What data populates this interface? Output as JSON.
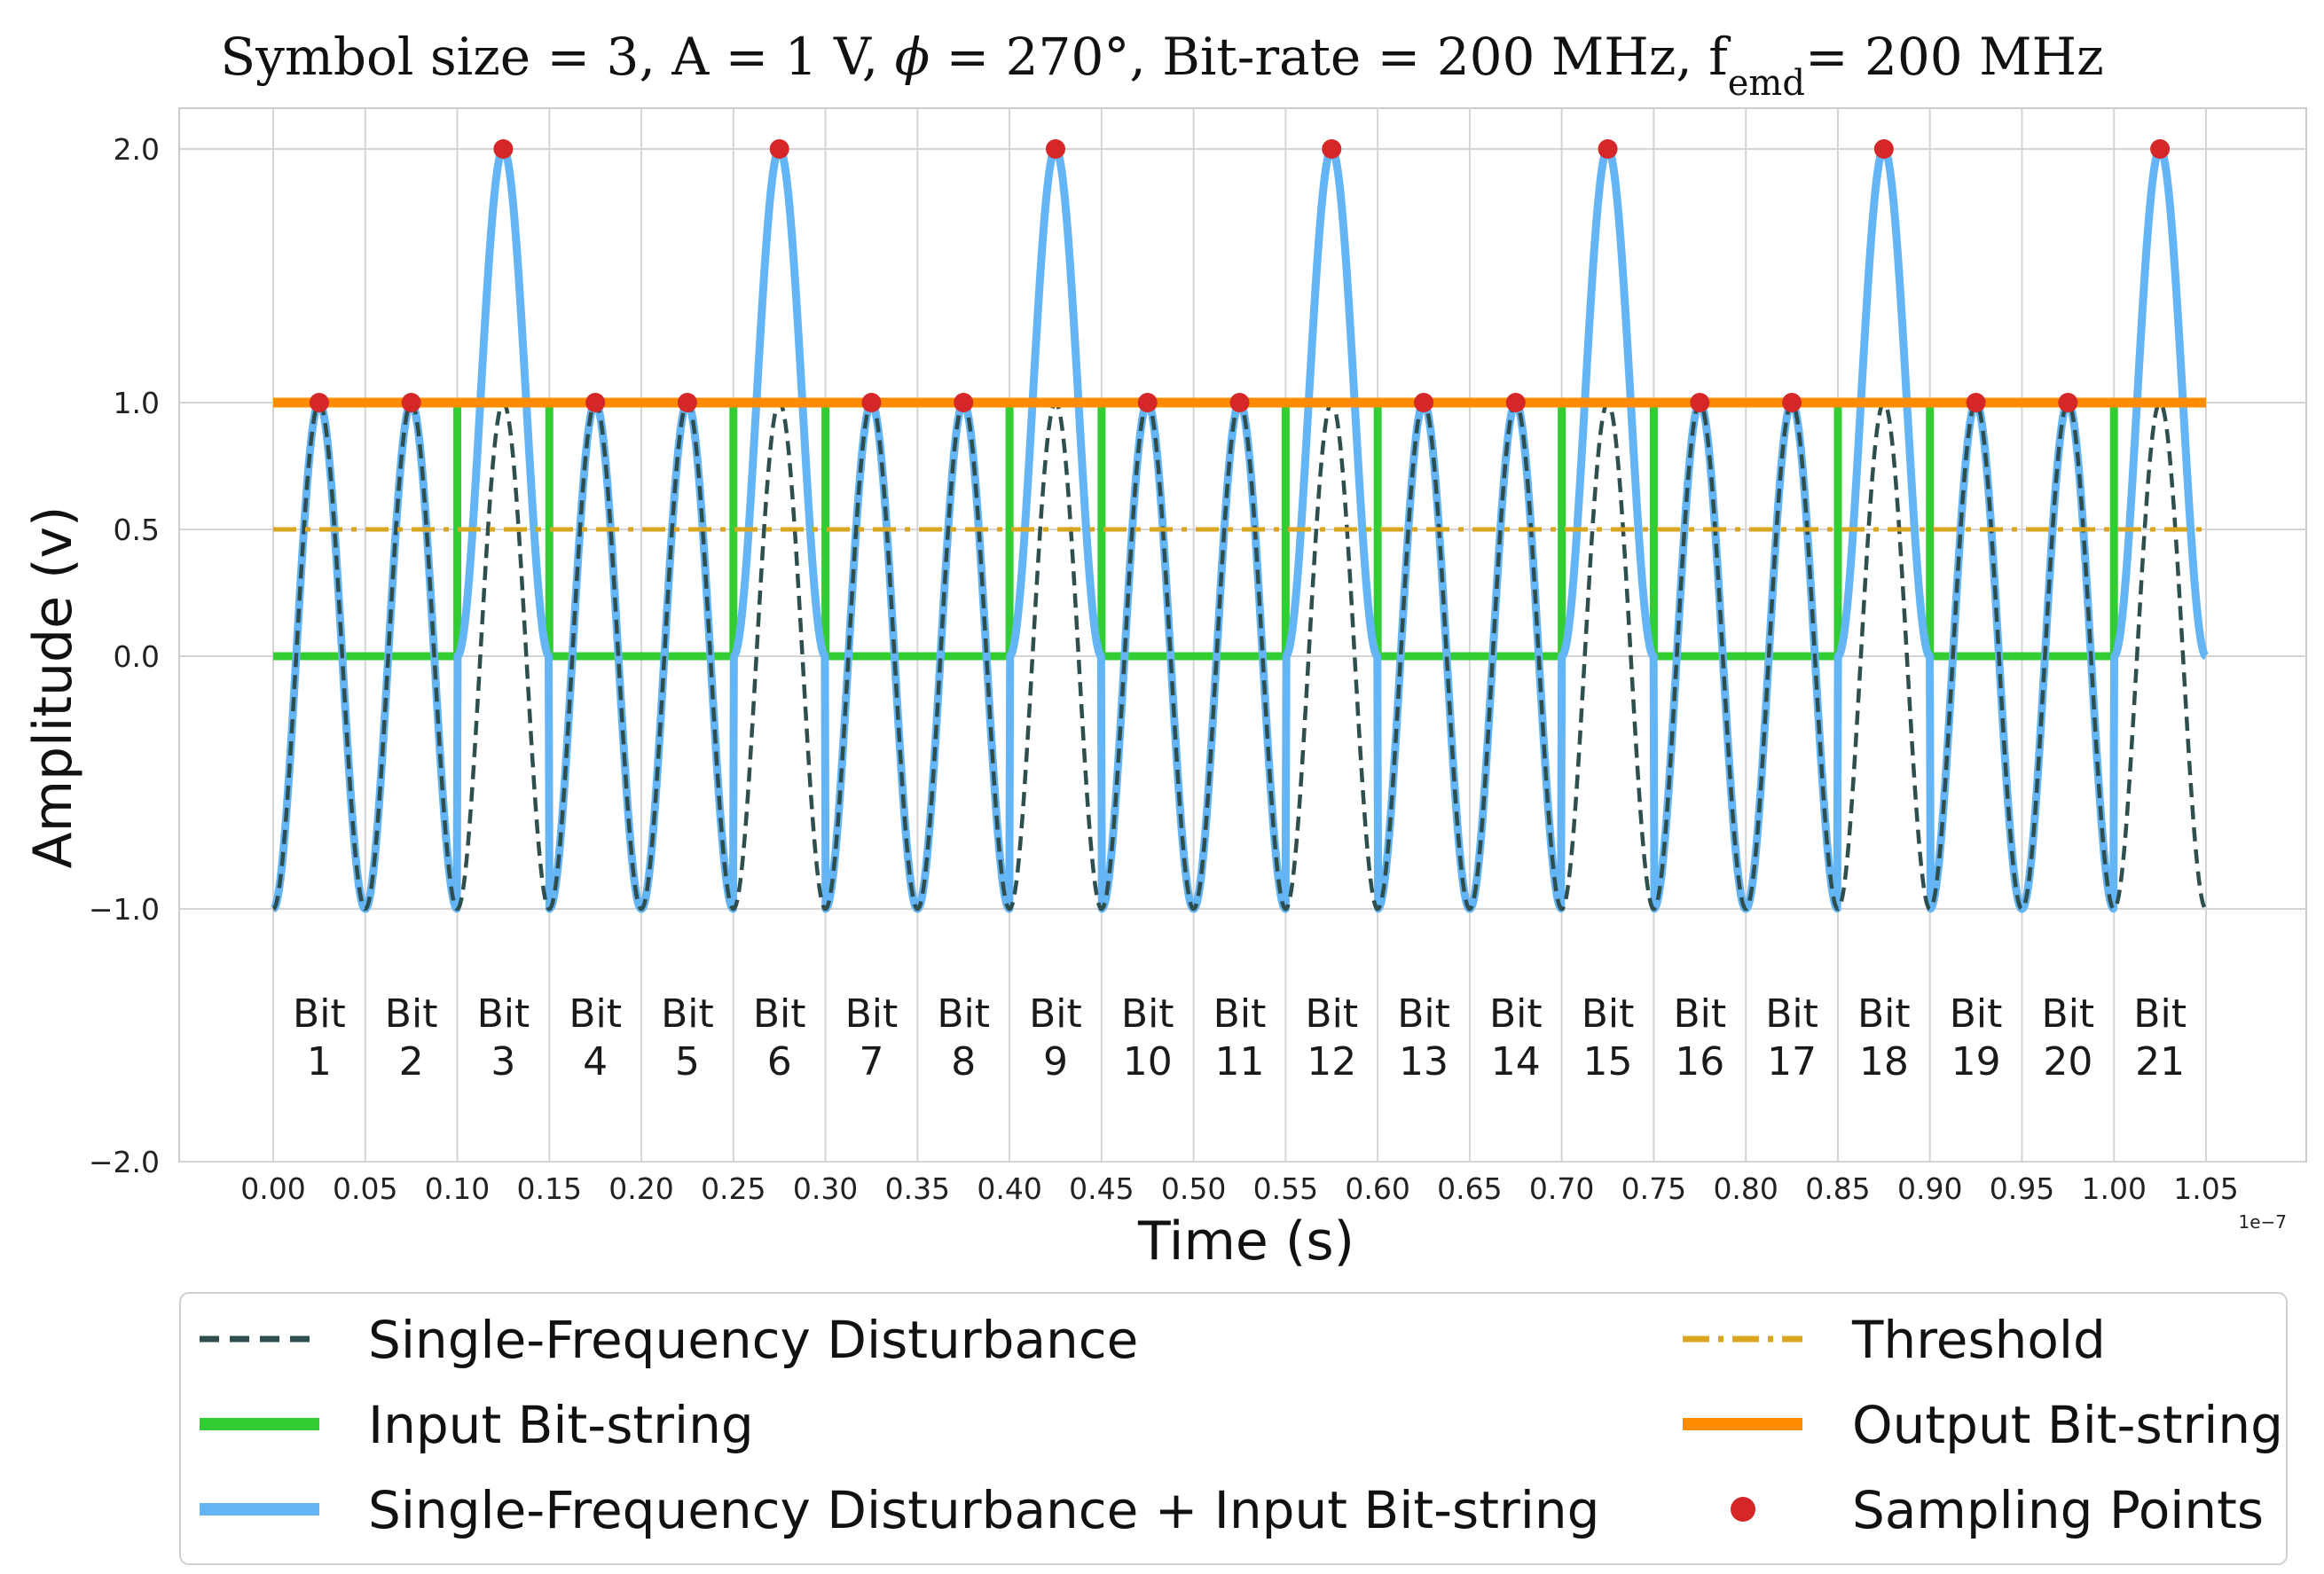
{
  "chart_data": {
    "type": "line",
    "title_parts": {
      "prefix": "Symbol size = 3, A = 1 V, ",
      "phi": "ϕ",
      "middle": " = 270°, Bit-rate = 200 MHz, f",
      "subscript": "emd",
      "suffix": "= 200 MHz"
    },
    "xlabel": "Time (s)",
    "ylabel": "Amplitude (v)",
    "x_offset_text": "1e−7",
    "xlim": [
      -0.0,
      1.05
    ],
    "ylim": [
      -2.0,
      2.0
    ],
    "x_ticks": [
      0.0,
      0.05,
      0.1,
      0.15,
      0.2,
      0.25,
      0.3,
      0.35,
      0.4,
      0.45,
      0.5,
      0.55,
      0.6,
      0.65,
      0.7,
      0.75,
      0.8,
      0.85,
      0.9,
      0.95,
      1.0,
      1.05
    ],
    "x_tick_labels": [
      "0.00",
      "0.05",
      "0.10",
      "0.15",
      "0.20",
      "0.25",
      "0.30",
      "0.35",
      "0.40",
      "0.45",
      "0.50",
      "0.55",
      "0.60",
      "0.65",
      "0.70",
      "0.75",
      "0.80",
      "0.85",
      "0.90",
      "0.95",
      "1.00",
      "1.05"
    ],
    "y_ticks": [
      -2.0,
      -1.0,
      0.0,
      0.5,
      1.0,
      2.0
    ],
    "y_tick_labels": [
      "−2.0",
      "−1.0",
      "0.0",
      "0.5",
      "1.0",
      "2.0"
    ],
    "disturbance": {
      "amplitude": 1,
      "frequency_per_unit": 20,
      "phase_deg": 270
    },
    "bit_duration": 0.05,
    "input_bits": [
      0,
      0,
      1,
      0,
      0,
      1,
      0,
      0,
      1,
      0,
      0,
      1,
      0,
      0,
      1,
      0,
      0,
      1,
      0,
      0,
      1
    ],
    "output_bits": [
      1,
      1,
      1,
      1,
      1,
      1,
      1,
      1,
      1,
      1,
      1,
      1,
      1,
      1,
      1,
      1,
      1,
      1,
      1,
      1,
      1
    ],
    "threshold": 0.5,
    "sampling_points": {
      "x": [
        0.025,
        0.075,
        0.125,
        0.175,
        0.225,
        0.275,
        0.325,
        0.375,
        0.425,
        0.475,
        0.525,
        0.575,
        0.625,
        0.675,
        0.725,
        0.775,
        0.825,
        0.875,
        0.925,
        0.975,
        1.025
      ],
      "y": [
        1,
        1,
        2,
        1,
        1,
        2,
        1,
        1,
        2,
        1,
        1,
        2,
        1,
        1,
        2,
        1,
        1,
        2,
        1,
        1,
        2
      ]
    },
    "bit_labels": {
      "word": "Bit",
      "numbers": [
        "1",
        "2",
        "3",
        "4",
        "5",
        "6",
        "7",
        "8",
        "9",
        "10",
        "11",
        "12",
        "13",
        "14",
        "15",
        "16",
        "17",
        "18",
        "19",
        "20",
        "21"
      ]
    },
    "series": [
      {
        "name": "Single-Frequency Disturbance",
        "color": "#2f4f4f",
        "style": "dashed"
      },
      {
        "name": "Input Bit-string",
        "color": "#32cd32",
        "style": "solid"
      },
      {
        "name": "Single-Frequency Disturbance + Input Bit-string",
        "color": "#64b5f6",
        "style": "solid"
      },
      {
        "name": "Threshold",
        "color": "#daa520",
        "style": "dashdot"
      },
      {
        "name": "Output Bit-string",
        "color": "#ff8c00",
        "style": "solid"
      },
      {
        "name": "Sampling Points",
        "color": "#d62728",
        "style": "marker"
      }
    ],
    "legend_position": "bottom"
  }
}
